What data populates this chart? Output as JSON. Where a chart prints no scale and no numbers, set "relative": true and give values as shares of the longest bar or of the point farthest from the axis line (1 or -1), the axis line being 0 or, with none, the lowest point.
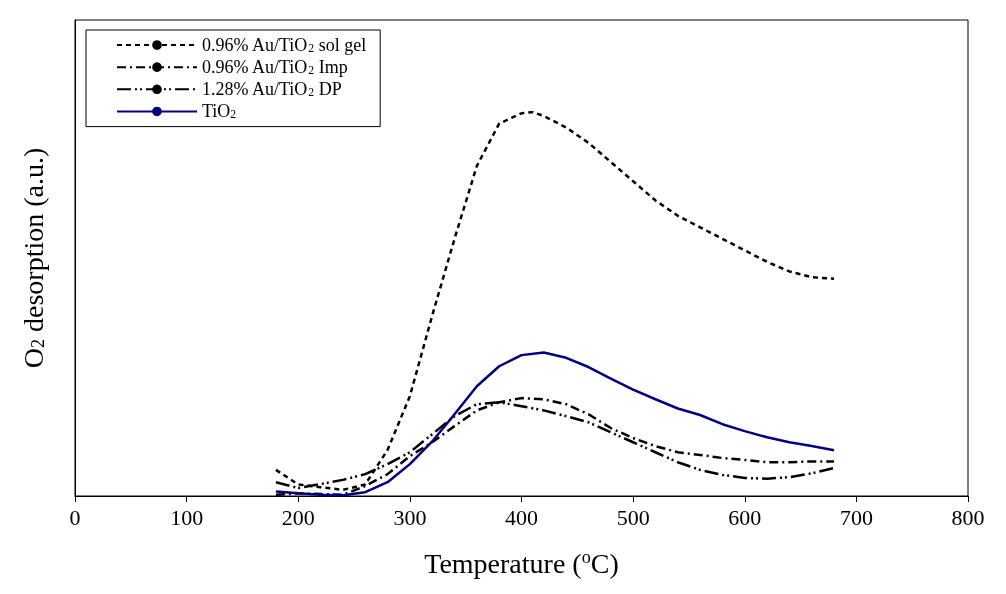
{
  "chart_data": {
    "type": "line",
    "relative": true,
    "xlabel": "Temperature ($^{o}$C)",
    "ylabel": "O$_{2}$ desorption (a.u.)",
    "xlim": [
      0,
      800
    ],
    "xticks": [
      0,
      100,
      200,
      300,
      400,
      500,
      600,
      700,
      800
    ],
    "x": [
      180,
      200,
      220,
      240,
      260,
      280,
      300,
      320,
      340,
      360,
      380,
      400,
      420,
      440,
      460,
      480,
      500,
      520,
      540,
      560,
      580,
      600,
      620,
      640,
      660,
      680
    ],
    "legend": "top left",
    "marker": "none",
    "grid": false,
    "series": [
      {
        "name": "0.96% Au/TiO$_{2}$ sol gel",
        "color": "#000000",
        "line_style": "dashed",
        "x": [
          180,
          200,
          220,
          240,
          260,
          280,
          300,
          320,
          340,
          360,
          380,
          400,
          410,
          420,
          440,
          460,
          480,
          500,
          520,
          540,
          560,
          580,
          600,
          620,
          640,
          660,
          680
        ],
        "values": [
          0.068,
          0.03,
          0.023,
          0.016,
          0.03,
          0.12,
          0.26,
          0.47,
          0.67,
          0.86,
          0.97,
          0.997,
          1,
          0.99,
          0.96,
          0.92,
          0.87,
          0.82,
          0.77,
          0.73,
          0.7,
          0.67,
          0.64,
          0.61,
          0.585,
          0.57,
          0.566
        ]
      },
      {
        "name": "0.96% Au/TiO$_{2}$ Imp",
        "color": "#000000",
        "line_style": "dashdot",
        "values": [
          0.003,
          0.007,
          0.005,
          0.003,
          0.026,
          0.057,
          0.104,
          0.14,
          0.182,
          0.223,
          0.244,
          0.255,
          0.252,
          0.239,
          0.213,
          0.177,
          0.151,
          0.13,
          0.114,
          0.107,
          0.099,
          0.094,
          0.088,
          0.088,
          0.09,
          0.09
        ]
      },
      {
        "name": "1.28% Au/TiO$_{2}$ DP",
        "color": "#000000",
        "line_style": "dashdotdot",
        "values": [
          0.036,
          0.021,
          0.031,
          0.042,
          0.057,
          0.083,
          0.114,
          0.161,
          0.208,
          0.239,
          0.244,
          0.234,
          0.223,
          0.208,
          0.192,
          0.166,
          0.14,
          0.114,
          0.088,
          0.068,
          0.055,
          0.047,
          0.045,
          0.049,
          0.059,
          0.073
        ]
      },
      {
        "name": "TiO$_{2}$",
        "color": "#000080",
        "line_style": "solid",
        "values": [
          0.012,
          0.007,
          0.003,
          0.002,
          0.01,
          0.036,
          0.083,
          0.142,
          0.213,
          0.286,
          0.338,
          0.367,
          0.374,
          0.36,
          0.336,
          0.306,
          0.277,
          0.252,
          0.228,
          0.211,
          0.187,
          0.169,
          0.153,
          0.14,
          0.13,
          0.119
        ]
      }
    ]
  }
}
